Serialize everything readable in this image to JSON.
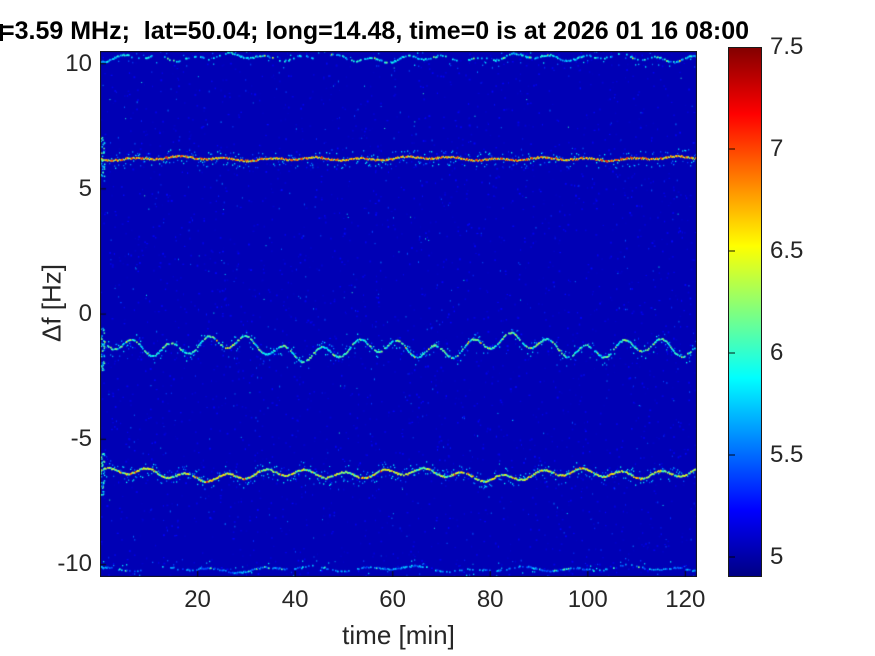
{
  "window": {
    "background": "#ffffff"
  },
  "chart_data": {
    "type": "heatmap",
    "subtype": "doppler-shift-spectrogram",
    "title": "=3.59 MHz;  lat=50.04; long=14.48, time=0 is at 2026 01 16 08:00",
    "xlabel": "time [min]",
    "ylabel": "Δf [Hz]",
    "xlim": [
      0,
      122.4
    ],
    "ylim": [
      -10.5,
      10.5
    ],
    "xticks": [
      20,
      40,
      60,
      80,
      100,
      120
    ],
    "yticks": [
      10,
      5,
      0,
      -5,
      -10
    ],
    "grid": false,
    "legend": "none",
    "colorbar": {
      "position": "right",
      "min": 4.9,
      "max": 7.5,
      "ticks": [
        5,
        5.5,
        6,
        6.5,
        7,
        7.5
      ],
      "colormap": "jet",
      "colormap_anchors": [
        {
          "u": 0.0,
          "color": "#000084"
        },
        {
          "u": 0.125,
          "color": "#0000ff"
        },
        {
          "u": 0.375,
          "color": "#00ffff"
        },
        {
          "u": 0.625,
          "color": "#ffff00"
        },
        {
          "u": 0.875,
          "color": "#ff0000"
        },
        {
          "u": 1.0,
          "color": "#840000"
        }
      ]
    },
    "background_level": 5.03,
    "noise_speckles": {
      "faint": 2600,
      "medium": 450,
      "bright": 80
    },
    "traces": [
      {
        "label": "upper band-edge trace",
        "df": 10.22,
        "level": 5.75,
        "spread": 0.25,
        "continuity": 0.34,
        "wander_hz": 0.1,
        "halo": 0.1,
        "core": false,
        "left_smear": false
      },
      {
        "label": "strong line +6.2 Hz",
        "df": 6.2,
        "level": 6.45,
        "spread": 0.3,
        "continuity": 1.0,
        "wander_hz": 0.05,
        "halo": 0.5,
        "core": true,
        "left_smear": true
      },
      {
        "label": "wavy trace -1.35 Hz",
        "df": -1.35,
        "level": 6.0,
        "spread": 0.3,
        "continuity": 0.78,
        "wander_hz": 0.3,
        "halo": 0.4,
        "core": false,
        "left_smear": true
      },
      {
        "label": "line -6.4 Hz",
        "df": -6.4,
        "level": 6.3,
        "spread": 0.4,
        "continuity": 0.93,
        "wander_hz": 0.15,
        "halo": 0.55,
        "core": false,
        "left_smear": true
      },
      {
        "label": "lower band-edge trace",
        "df": -10.18,
        "level": 5.55,
        "spread": 0.2,
        "continuity": 0.3,
        "wander_hz": 0.08,
        "halo": 0.08,
        "core": false,
        "left_smear": false
      }
    ]
  }
}
